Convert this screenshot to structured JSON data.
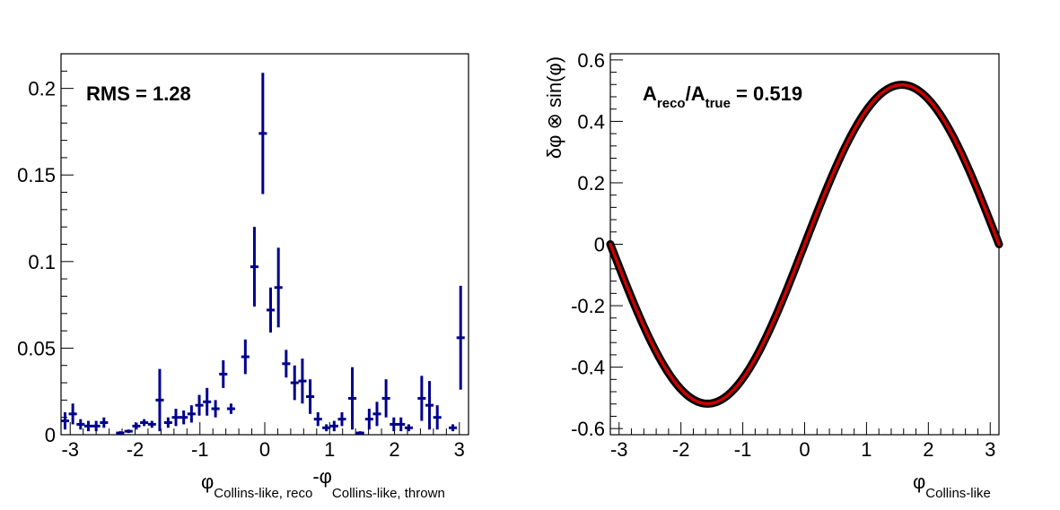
{
  "chart_data": [
    {
      "type": "scatter",
      "style": "histogram-with-error-bars",
      "title": "",
      "xlabel": {
        "main_a": "φ",
        "sub_a": "Collins-like, reco",
        "join": "-",
        "main_b": "φ",
        "sub_b": "Collins-like, thrown"
      },
      "ylabel": "",
      "xlim": [
        -3.14159,
        3.14159
      ],
      "ylim": [
        0,
        0.22
      ],
      "x_ticks": [
        -3,
        -2,
        -1,
        0,
        1,
        2,
        3
      ],
      "x_tick_labels": [
        "-3",
        "-2",
        "-1",
        "0",
        "1",
        "2",
        "3"
      ],
      "y_ticks": [
        0,
        0.05,
        0.1,
        0.15,
        0.2
      ],
      "y_tick_labels": [
        "0",
        "0.05",
        "0.1",
        "0.15",
        "0.2"
      ],
      "grid": false,
      "color": "#00008b",
      "annotation": "RMS = 1.28",
      "points": [
        {
          "x": -3.08,
          "y": 0.008,
          "err": 0.005
        },
        {
          "x": -2.96,
          "y": 0.012,
          "err": 0.006
        },
        {
          "x": -2.84,
          "y": 0.006,
          "err": 0.003
        },
        {
          "x": -2.72,
          "y": 0.005,
          "err": 0.003
        },
        {
          "x": -2.6,
          "y": 0.005,
          "err": 0.003
        },
        {
          "x": -2.48,
          "y": 0.007,
          "err": 0.003
        },
        {
          "x": -2.23,
          "y": 0.001,
          "err": 0.001
        },
        {
          "x": -2.1,
          "y": 0.002,
          "err": 0.001
        },
        {
          "x": -1.98,
          "y": 0.005,
          "err": 0.002
        },
        {
          "x": -1.86,
          "y": 0.007,
          "err": 0.002
        },
        {
          "x": -1.74,
          "y": 0.006,
          "err": 0.002
        },
        {
          "x": -1.62,
          "y": 0.02,
          "err": 0.018
        },
        {
          "x": -1.49,
          "y": 0.007,
          "err": 0.003
        },
        {
          "x": -1.37,
          "y": 0.01,
          "err": 0.005
        },
        {
          "x": -1.25,
          "y": 0.01,
          "err": 0.004
        },
        {
          "x": -1.13,
          "y": 0.012,
          "err": 0.005
        },
        {
          "x": -1.01,
          "y": 0.017,
          "err": 0.006
        },
        {
          "x": -0.89,
          "y": 0.019,
          "err": 0.008
        },
        {
          "x": -0.76,
          "y": 0.015,
          "err": 0.005
        },
        {
          "x": -0.64,
          "y": 0.035,
          "err": 0.008
        },
        {
          "x": -0.52,
          "y": 0.015,
          "err": 0.003
        },
        {
          "x": -0.3,
          "y": 0.045,
          "err": 0.01
        },
        {
          "x": -0.16,
          "y": 0.097,
          "err": 0.023
        },
        {
          "x": -0.03,
          "y": 0.174,
          "err": 0.035
        },
        {
          "x": 0.09,
          "y": 0.072,
          "err": 0.013
        },
        {
          "x": 0.21,
          "y": 0.085,
          "err": 0.023
        },
        {
          "x": 0.33,
          "y": 0.041,
          "err": 0.008
        },
        {
          "x": 0.46,
          "y": 0.03,
          "err": 0.01
        },
        {
          "x": 0.58,
          "y": 0.031,
          "err": 0.013
        },
        {
          "x": 0.7,
          "y": 0.022,
          "err": 0.01
        },
        {
          "x": 0.82,
          "y": 0.009,
          "err": 0.004
        },
        {
          "x": 0.95,
          "y": 0.004,
          "err": 0.002
        },
        {
          "x": 1.07,
          "y": 0.005,
          "err": 0.003
        },
        {
          "x": 1.19,
          "y": 0.009,
          "err": 0.004
        },
        {
          "x": 1.35,
          "y": 0.021,
          "err": 0.018
        },
        {
          "x": 1.47,
          "y": 0.001,
          "err": 0.001
        },
        {
          "x": 1.61,
          "y": 0.009,
          "err": 0.006
        },
        {
          "x": 1.73,
          "y": 0.012,
          "err": 0.007
        },
        {
          "x": 1.87,
          "y": 0.021,
          "err": 0.011
        },
        {
          "x": 1.99,
          "y": 0.006,
          "err": 0.004
        },
        {
          "x": 2.1,
          "y": 0.006,
          "err": 0.004
        },
        {
          "x": 2.22,
          "y": 0.004,
          "err": 0.002
        },
        {
          "x": 2.42,
          "y": 0.021,
          "err": 0.013
        },
        {
          "x": 2.54,
          "y": 0.017,
          "err": 0.014
        },
        {
          "x": 2.66,
          "y": 0.01,
          "err": 0.007
        },
        {
          "x": 2.9,
          "y": 0.004,
          "err": 0.002
        },
        {
          "x": 3.02,
          "y": 0.056,
          "err": 0.03
        }
      ]
    },
    {
      "type": "line",
      "title": "",
      "xlabel": {
        "main": "φ",
        "sub": "Collins-like"
      },
      "ylabel": "δφ ⊗ sin(φ)",
      "xlim": [
        -3.14159,
        3.14159
      ],
      "ylim": [
        -0.62,
        0.62
      ],
      "x_ticks": [
        -3,
        -2,
        -1,
        0,
        1,
        2,
        3
      ],
      "x_tick_labels": [
        "-3",
        "-2",
        "-1",
        "0",
        "1",
        "2",
        "3"
      ],
      "y_ticks": [
        -0.6,
        -0.4,
        -0.2,
        0,
        0.2,
        0.4,
        0.6
      ],
      "y_tick_labels": [
        "-0.6",
        "-0.4",
        "-0.2",
        "0",
        "0.2",
        "0.4",
        "0.6"
      ],
      "grid": false,
      "function": "A * sin(x)",
      "amplitude": 0.519,
      "series": [
        {
          "color": "#000000",
          "amplitude": 0.519
        },
        {
          "color": "#cc0000",
          "amplitude": 0.519
        }
      ],
      "annotation": {
        "A": "A",
        "reco": "reco",
        "slash": "/",
        "true": "true",
        "value": " = 0.519"
      }
    }
  ]
}
